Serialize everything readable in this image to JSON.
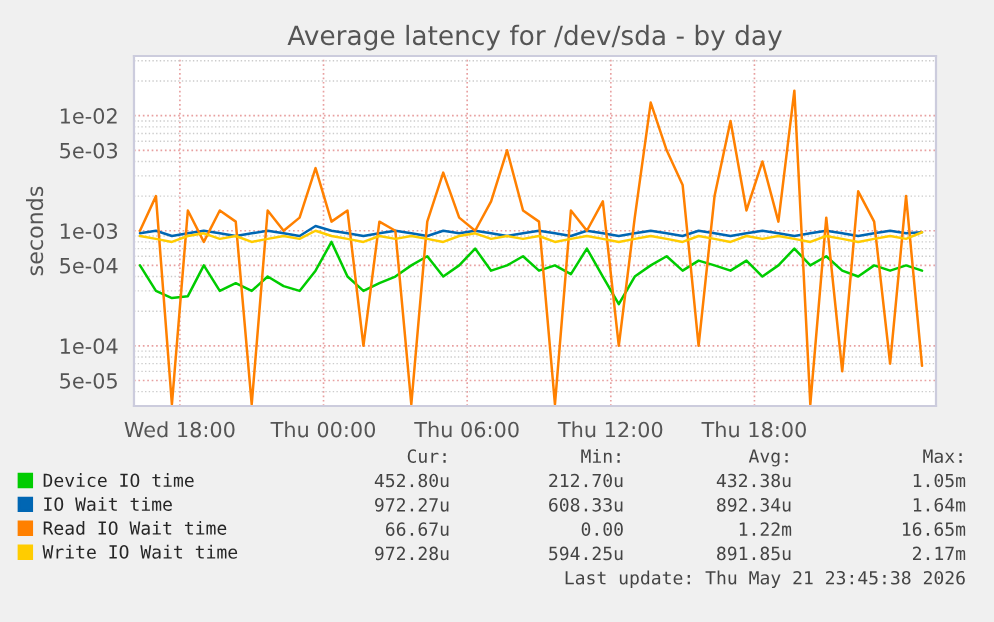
{
  "chart_data": {
    "type": "line",
    "title": "Average latency for /dev/sda - by day",
    "ylabel": "seconds",
    "log": "y",
    "x": [
      "2026-05-20T16:20",
      "2026-05-20T17:00",
      "2026-05-20T17:40",
      "2026-05-20T18:20",
      "2026-05-20T19:00",
      "2026-05-20T19:40",
      "2026-05-20T20:20",
      "2026-05-20T21:00",
      "2026-05-20T21:40",
      "2026-05-20T22:20",
      "2026-05-20T23:00",
      "2026-05-20T23:40",
      "2026-05-21T00:20",
      "2026-05-21T01:00",
      "2026-05-21T01:40",
      "2026-05-21T02:20",
      "2026-05-21T03:00",
      "2026-05-21T03:40",
      "2026-05-21T04:20",
      "2026-05-21T05:00",
      "2026-05-21T05:40",
      "2026-05-21T06:20",
      "2026-05-21T07:00",
      "2026-05-21T07:40",
      "2026-05-21T08:20",
      "2026-05-21T09:00",
      "2026-05-21T09:40",
      "2026-05-21T10:20",
      "2026-05-21T11:00",
      "2026-05-21T11:40",
      "2026-05-21T12:20",
      "2026-05-21T13:00",
      "2026-05-21T13:40",
      "2026-05-21T14:20",
      "2026-05-21T15:00",
      "2026-05-21T15:40",
      "2026-05-21T16:20",
      "2026-05-21T17:00",
      "2026-05-21T17:40",
      "2026-05-21T18:20",
      "2026-05-21T19:00",
      "2026-05-21T19:40",
      "2026-05-21T20:20",
      "2026-05-21T21:00",
      "2026-05-21T21:40",
      "2026-05-21T22:20",
      "2026-05-21T23:00",
      "2026-05-21T23:40",
      "2026-05-22T00:20",
      "2026-05-22T01:00"
    ],
    "xlim": [
      "2026-05-20T16:05",
      "2026-05-22T01:35"
    ],
    "xticks": [
      {
        "value": "2026-05-20T18:00",
        "label": "Wed 18:00"
      },
      {
        "value": "2026-05-21T00:00",
        "label": "Thu 00:00"
      },
      {
        "value": "2026-05-21T06:00",
        "label": "Thu 06:00"
      },
      {
        "value": "2026-05-21T12:00",
        "label": "Thu 12:00"
      },
      {
        "value": "2026-05-21T18:00",
        "label": "Thu 18:00"
      }
    ],
    "ylim": [
      3e-05,
      0.033
    ],
    "yticks": [
      {
        "value": 5e-05,
        "label": "5e-05"
      },
      {
        "value": 0.0001,
        "label": "1e-04"
      },
      {
        "value": 0.0005,
        "label": "5e-04"
      },
      {
        "value": 0.001,
        "label": "1e-03"
      },
      {
        "value": 0.005,
        "label": "5e-03"
      },
      {
        "value": 0.01,
        "label": "1e-02"
      }
    ],
    "grid": true,
    "legend": "bottom",
    "series": [
      {
        "name": "Device IO time",
        "color": "#00cc00",
        "values": [
          0.0005,
          0.0003,
          0.00026,
          0.00027,
          0.0005,
          0.0003,
          0.00035,
          0.0003,
          0.0004,
          0.00033,
          0.0003,
          0.00045,
          0.0008,
          0.0004,
          0.0003,
          0.00035,
          0.0004,
          0.0005,
          0.0006,
          0.0004,
          0.0005,
          0.0007,
          0.00045,
          0.0005,
          0.0006,
          0.00045,
          0.0005,
          0.00042,
          0.0007,
          0.0004,
          0.00023,
          0.0004,
          0.0005,
          0.0006,
          0.00045,
          0.00055,
          0.0005,
          0.00045,
          0.00055,
          0.0004,
          0.0005,
          0.0007,
          0.0005,
          0.0006,
          0.00045,
          0.0004,
          0.0005,
          0.00045,
          0.0005,
          0.00045
        ]
      },
      {
        "name": "IO Wait time",
        "color": "#0066b3",
        "values": [
          0.00095,
          0.001,
          0.0009,
          0.00095,
          0.001,
          0.00095,
          0.0009,
          0.00095,
          0.001,
          0.00095,
          0.0009,
          0.0011,
          0.001,
          0.00095,
          0.0009,
          0.00095,
          0.001,
          0.00095,
          0.0009,
          0.001,
          0.00095,
          0.001,
          0.00095,
          0.0009,
          0.00095,
          0.001,
          0.00095,
          0.0009,
          0.001,
          0.00095,
          0.0009,
          0.00095,
          0.001,
          0.00095,
          0.0009,
          0.001,
          0.00095,
          0.0009,
          0.00095,
          0.001,
          0.00095,
          0.0009,
          0.00095,
          0.001,
          0.00095,
          0.0009,
          0.00095,
          0.001,
          0.00095,
          0.00097
        ]
      },
      {
        "name": "Read IO Wait time",
        "color": "#ff8000",
        "values": [
          0.001,
          0.002,
          3.1e-05,
          0.0015,
          0.0008,
          0.0015,
          0.0012,
          3.1e-05,
          0.0015,
          0.001,
          0.0013,
          0.0035,
          0.0012,
          0.0015,
          0.0001,
          0.0012,
          0.001,
          3.1e-05,
          0.0012,
          0.0032,
          0.0013,
          0.001,
          0.0018,
          0.005,
          0.0015,
          0.0012,
          3.1e-05,
          0.0015,
          0.001,
          0.0018,
          0.0001,
          0.0013,
          0.013,
          0.005,
          0.0025,
          0.0001,
          0.002,
          0.009,
          0.0015,
          0.004,
          0.0012,
          0.0165,
          3.1e-05,
          0.0013,
          6e-05,
          0.0022,
          0.0012,
          7e-05,
          0.002,
          6.7e-05
        ]
      },
      {
        "name": "Write IO Wait time",
        "color": "#ffcc00",
        "values": [
          0.0009,
          0.00085,
          0.0008,
          0.0009,
          0.00095,
          0.00085,
          0.0009,
          0.0008,
          0.00085,
          0.0009,
          0.00085,
          0.001,
          0.0009,
          0.00085,
          0.0008,
          0.0009,
          0.00085,
          0.0009,
          0.00085,
          0.0008,
          0.0009,
          0.00095,
          0.00085,
          0.0009,
          0.00085,
          0.0009,
          0.0008,
          0.00085,
          0.0009,
          0.00085,
          0.0008,
          0.00085,
          0.0009,
          0.00085,
          0.0008,
          0.0009,
          0.00085,
          0.0008,
          0.0009,
          0.00085,
          0.0009,
          0.00085,
          0.0008,
          0.0009,
          0.00085,
          0.0008,
          0.00085,
          0.0009,
          0.00085,
          0.00097
        ]
      }
    ],
    "annotations": [
      "Cur:",
      "Min:",
      "Avg:",
      "Max:",
      "452.80u",
      "212.70u",
      "432.38u",
      "1.05m",
      "972.27u",
      "608.33u",
      "892.34u",
      "1.64m",
      "66.67u",
      "0.00",
      "1.22m",
      "16.65m",
      "972.28u",
      "594.25u",
      "891.85u",
      "2.17m",
      "Last update: Thu May 21 23:45:38 2026"
    ]
  }
}
